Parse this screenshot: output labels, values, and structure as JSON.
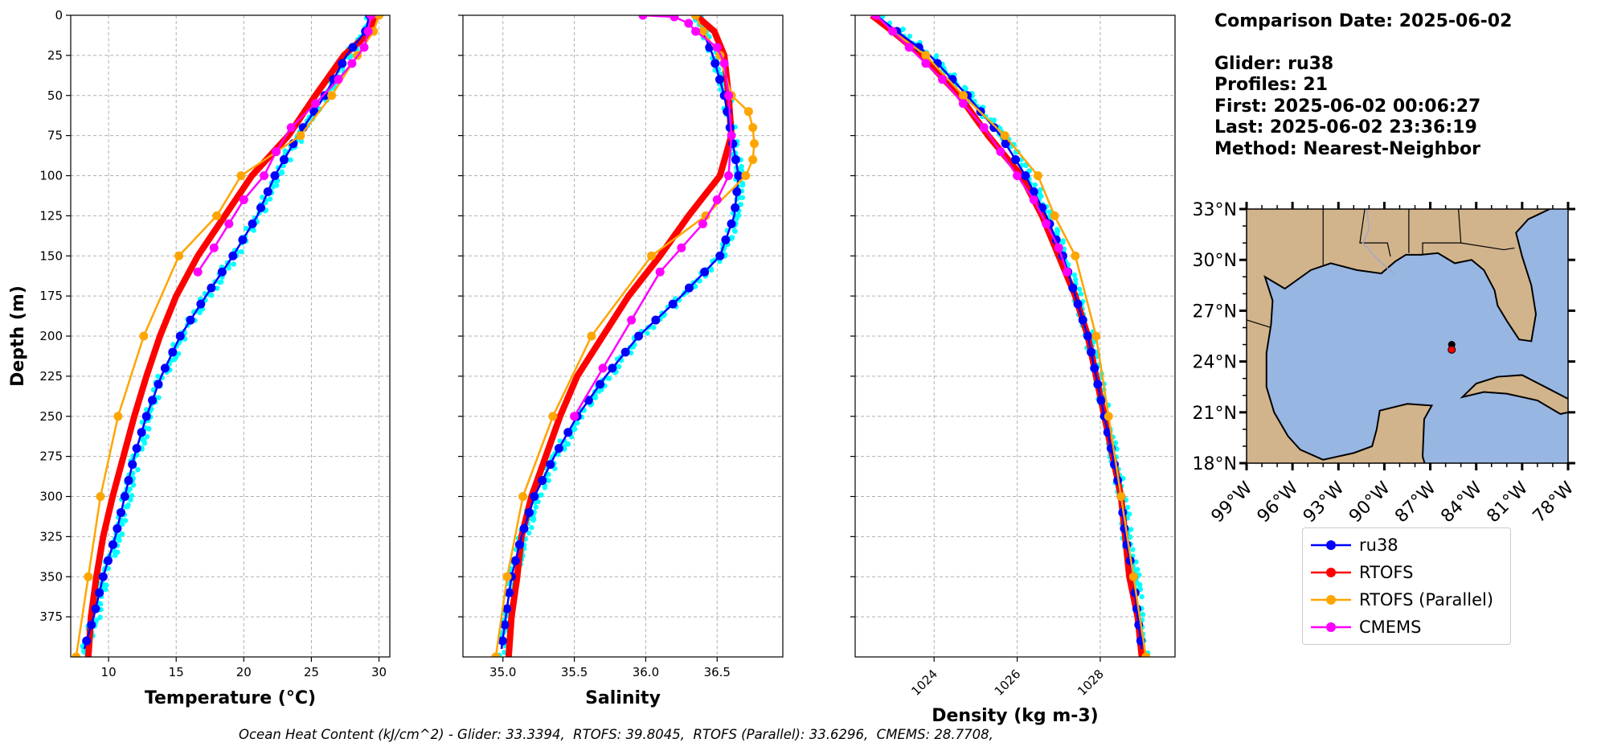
{
  "info": {
    "comparison_date": "Comparison Date: 2025-06-02",
    "glider": "Glider: ru38",
    "profiles": "Profiles: 21",
    "first": "First: 2025-06-02 00:06:27",
    "last": "Last: 2025-06-02 23:36:19",
    "method": "Method: Nearest-Neighbor"
  },
  "footer": {
    "ohc_text": "Ocean Heat Content (kJ/cm^2) - Glider: 33.3394,  RTOFS: 39.8045,  RTOFS (Parallel): 33.6296,  CMEMS: 28.7708,"
  },
  "legend": [
    {
      "name": "ru38",
      "color": "#0000ff"
    },
    {
      "name": "RTOFS",
      "color": "#ff0000"
    },
    {
      "name": "RTOFS (Parallel)",
      "color": "#ffa500"
    },
    {
      "name": "CMEMS",
      "color": "#ff00ff"
    }
  ],
  "colors": {
    "glider_raw": "#00ffff",
    "grid": "#b0b0b0",
    "ocean": "#98b6e2",
    "land": "#d2b48c",
    "site": "#ff0000"
  },
  "chart_data": [
    {
      "type": "line",
      "xlabel": "Temperature (°C)",
      "ylabel": "Depth (m)",
      "xlim": [
        7.2,
        30.8
      ],
      "ylim": [
        400,
        0
      ],
      "xticks": [
        10,
        15,
        20,
        25,
        30
      ],
      "yticks": [
        0,
        25,
        50,
        75,
        100,
        125,
        150,
        175,
        200,
        225,
        250,
        275,
        300,
        325,
        350,
        375
      ],
      "series": [
        {
          "name": "ru38",
          "depth": [
            0,
            10,
            25,
            50,
            75,
            100,
            125,
            150,
            175,
            200,
            225,
            250,
            275,
            300,
            325,
            350,
            375,
            395
          ],
          "values": [
            29.3,
            29.0,
            27.6,
            26.0,
            24.0,
            22.3,
            21.0,
            19.2,
            17.2,
            15.3,
            13.9,
            12.8,
            11.9,
            11.2,
            10.5,
            9.6,
            8.9,
            8.2
          ]
        },
        {
          "name": "RTOFS",
          "depth": [
            0,
            10,
            25,
            50,
            75,
            100,
            125,
            150,
            175,
            200,
            225,
            250,
            275,
            300,
            325,
            350,
            375,
            400
          ],
          "values": [
            29.8,
            29.4,
            27.4,
            25.3,
            23.3,
            20.6,
            18.6,
            16.6,
            15.0,
            13.8,
            12.8,
            11.9,
            11.1,
            10.3,
            9.6,
            9.1,
            8.7,
            8.5
          ]
        },
        {
          "name": "RTOFS (Parallel)",
          "depth": [
            0,
            10,
            25,
            50,
            75,
            100,
            125,
            150,
            200,
            250,
            300,
            350,
            400
          ],
          "values": [
            30.0,
            29.6,
            28.4,
            26.5,
            24.2,
            19.8,
            18.0,
            15.2,
            12.6,
            10.7,
            9.4,
            8.5,
            7.6
          ]
        },
        {
          "name": "CMEMS",
          "depth": [
            0,
            10,
            20,
            30,
            40,
            55,
            70,
            85,
            100,
            115,
            130,
            145,
            160
          ],
          "values": [
            29.4,
            29.2,
            28.9,
            28.0,
            27.0,
            25.3,
            23.5,
            22.4,
            21.5,
            20.0,
            18.9,
            17.8,
            16.6
          ]
        }
      ]
    },
    {
      "type": "line",
      "xlabel": "Salinity",
      "xlim": [
        34.72,
        36.96
      ],
      "ylim": [
        400,
        0
      ],
      "xticks": [
        35.0,
        35.5,
        36.0,
        36.5
      ],
      "series": [
        {
          "name": "ru38",
          "depth": [
            0,
            10,
            25,
            50,
            75,
            100,
            125,
            150,
            175,
            200,
            225,
            250,
            275,
            300,
            325,
            350,
            375,
            395
          ],
          "values": [
            36.35,
            36.4,
            36.47,
            36.55,
            36.6,
            36.65,
            36.62,
            36.52,
            36.25,
            35.95,
            35.72,
            35.52,
            35.36,
            35.22,
            35.13,
            35.06,
            35.02,
            34.99
          ]
        },
        {
          "name": "RTOFS",
          "depth": [
            0,
            10,
            25,
            50,
            75,
            100,
            125,
            150,
            175,
            200,
            225,
            250,
            275,
            300,
            325,
            350,
            375,
            400
          ],
          "values": [
            36.35,
            36.48,
            36.55,
            36.58,
            36.6,
            36.52,
            36.3,
            36.1,
            35.88,
            35.7,
            35.52,
            35.4,
            35.3,
            35.2,
            35.13,
            35.1,
            35.06,
            35.04
          ]
        },
        {
          "name": "RTOFS (Parallel)",
          "depth": [
            0,
            10,
            25,
            50,
            60,
            70,
            80,
            90,
            100,
            125,
            150,
            200,
            250,
            300,
            350,
            400
          ],
          "values": [
            36.35,
            36.4,
            36.52,
            36.6,
            36.72,
            36.75,
            36.76,
            36.75,
            36.7,
            36.42,
            36.04,
            35.62,
            35.35,
            35.14,
            35.03,
            34.95
          ]
        },
        {
          "name": "CMEMS",
          "depth": [
            0,
            1,
            5,
            10,
            20,
            30,
            50,
            75,
            100,
            115,
            130,
            145,
            160,
            190,
            220,
            250
          ],
          "values": [
            35.98,
            36.2,
            36.3,
            36.35,
            36.5,
            36.55,
            36.58,
            36.6,
            36.58,
            36.5,
            36.4,
            36.25,
            36.1,
            35.9,
            35.7,
            35.5
          ]
        }
      ]
    },
    {
      "type": "line",
      "xlabel": "Density (kg m-3)",
      "xlim": [
        1022.1,
        1029.8
      ],
      "ylim": [
        400,
        0
      ],
      "xticks": [
        1024,
        1026,
        1028
      ],
      "series": [
        {
          "name": "ru38",
          "depth": [
            0,
            10,
            25,
            50,
            75,
            100,
            125,
            150,
            175,
            200,
            225,
            250,
            275,
            300,
            325,
            350,
            375,
            395
          ],
          "values": [
            1022.6,
            1023.1,
            1023.9,
            1024.8,
            1025.6,
            1026.2,
            1026.7,
            1027.1,
            1027.4,
            1027.7,
            1027.9,
            1028.1,
            1028.3,
            1028.5,
            1028.6,
            1028.8,
            1028.9,
            1029.0
          ]
        },
        {
          "name": "RTOFS",
          "depth": [
            0,
            10,
            25,
            50,
            75,
            100,
            125,
            150,
            175,
            200,
            225,
            250,
            275,
            300,
            325,
            350,
            375,
            400
          ],
          "values": [
            1022.5,
            1023.0,
            1023.7,
            1024.6,
            1025.3,
            1026.1,
            1026.6,
            1027.0,
            1027.4,
            1027.7,
            1027.9,
            1028.1,
            1028.3,
            1028.5,
            1028.6,
            1028.7,
            1028.9,
            1029.0
          ]
        },
        {
          "name": "RTOFS (Parallel)",
          "depth": [
            0,
            10,
            25,
            50,
            75,
            100,
            125,
            150,
            200,
            250,
            300,
            350,
            400
          ],
          "values": [
            1022.6,
            1023.0,
            1023.8,
            1024.7,
            1025.7,
            1026.5,
            1026.9,
            1027.4,
            1027.9,
            1028.2,
            1028.5,
            1028.8,
            1029.1
          ]
        },
        {
          "name": "CMEMS",
          "depth": [
            0,
            10,
            20,
            30,
            40,
            55,
            70,
            85,
            100,
            115,
            130,
            145,
            160
          ],
          "values": [
            1022.6,
            1023.0,
            1023.4,
            1023.8,
            1024.2,
            1024.7,
            1025.2,
            1025.6,
            1026.0,
            1026.4,
            1026.7,
            1027.0,
            1027.2
          ]
        }
      ]
    }
  ],
  "map": {
    "lat_ticks": [
      "33°N",
      "30°N",
      "27°N",
      "24°N",
      "21°N",
      "18°N"
    ],
    "lon_ticks": [
      "99°W",
      "96°W",
      "93°W",
      "90°W",
      "87°W",
      "84°W",
      "81°W",
      "78°W"
    ],
    "lat_range": [
      18,
      33
    ],
    "lon_range": [
      -99,
      -78
    ],
    "glider_position": {
      "lon": -85.6,
      "lat": 25.0
    },
    "model_position": {
      "lon": -85.6,
      "lat": 24.7
    }
  }
}
